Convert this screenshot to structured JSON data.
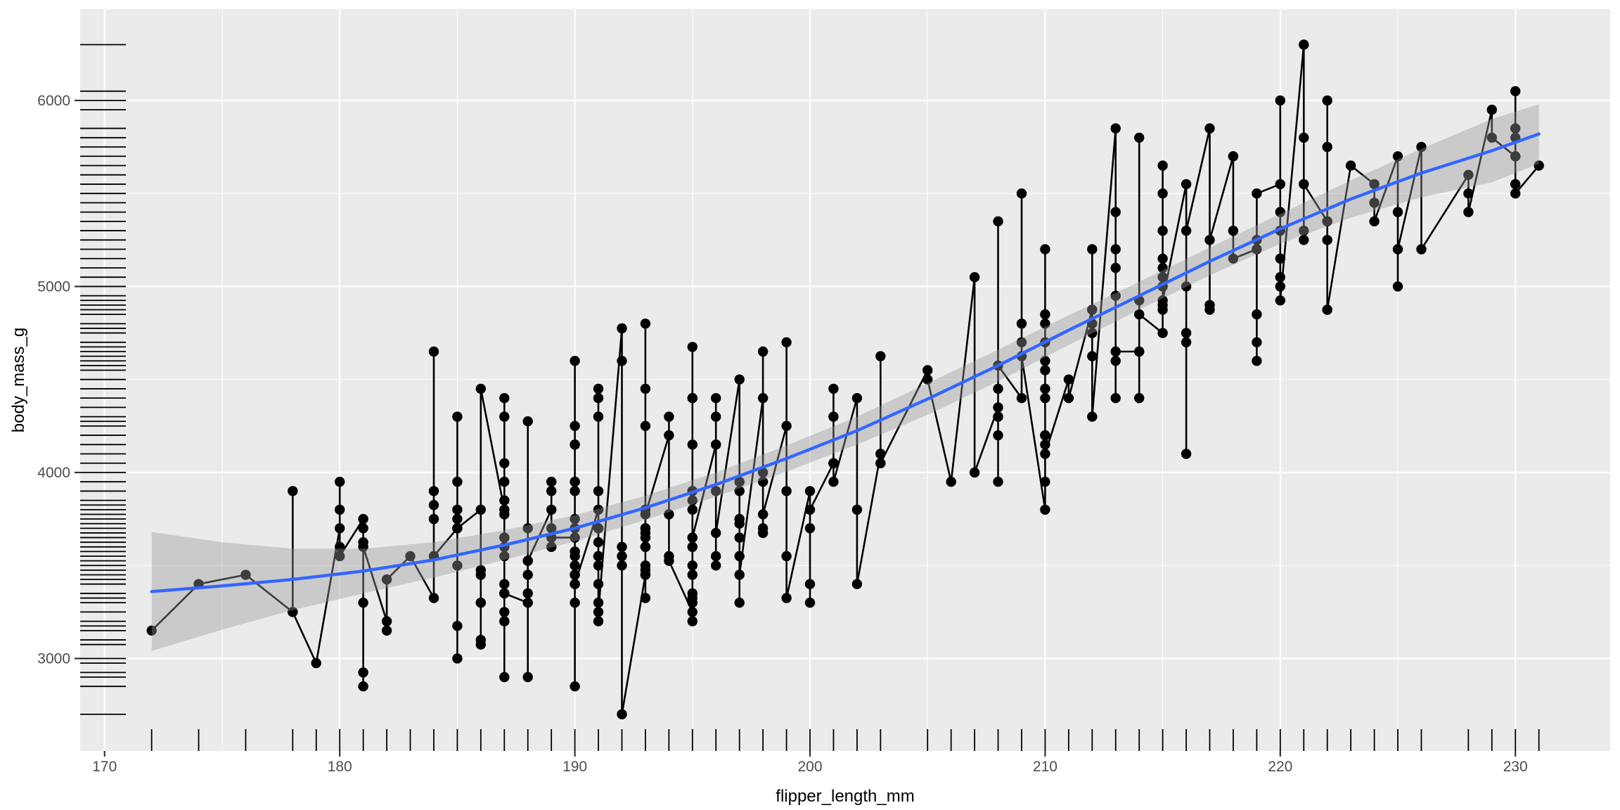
{
  "chart_data": {
    "type": "scatter",
    "title": "",
    "xlabel": "flipper_length_mm",
    "ylabel": "body_mass_g",
    "legend": "none",
    "grid": true,
    "x_ticks": [
      170,
      180,
      190,
      200,
      210,
      220,
      230
    ],
    "y_ticks": [
      3000,
      4000,
      5000,
      6000
    ],
    "x_minor_ticks": [
      175,
      185,
      195,
      205,
      215,
      225
    ],
    "y_minor_ticks": [
      3500,
      4500,
      5500
    ],
    "x_range": [
      168.96,
      234.03
    ],
    "y_range": [
      2503,
      6491
    ],
    "layers": [
      "line",
      "point",
      "smooth-loess",
      "rug"
    ],
    "colors": {
      "panel_bg": "#EBEBEB",
      "grid": "#FFFFFF",
      "point": "#000000",
      "line": "#000000",
      "smooth": "#3366FF",
      "ribbon": "#999999",
      "ribbon_alpha": 0.4,
      "tick_label": "#4D4D4D",
      "tick_mark": "#333333",
      "axis_title": "#000000"
    },
    "points": [
      [
        181,
        3750
      ],
      [
        186,
        3800
      ],
      [
        195,
        3250
      ],
      [
        193,
        3450
      ],
      [
        190,
        3650
      ],
      [
        181,
        3625
      ],
      [
        195,
        4675
      ],
      [
        193,
        3475
      ],
      [
        190,
        4250
      ],
      [
        186,
        3300
      ],
      [
        180,
        3700
      ],
      [
        182,
        3200
      ],
      [
        191,
        3800
      ],
      [
        198,
        4400
      ],
      [
        185,
        3700
      ],
      [
        195,
        3450
      ],
      [
        197,
        4500
      ],
      [
        184,
        3325
      ],
      [
        194,
        4200
      ],
      [
        174,
        3400
      ],
      [
        180,
        3600
      ],
      [
        189,
        3800
      ],
      [
        185,
        3950
      ],
      [
        180,
        3800
      ],
      [
        187,
        3800
      ],
      [
        183,
        3550
      ],
      [
        187,
        3200
      ],
      [
        172,
        3150
      ],
      [
        180,
        3950
      ],
      [
        178,
        3250
      ],
      [
        178,
        3900
      ],
      [
        188,
        3300
      ],
      [
        184,
        3900
      ],
      [
        195,
        3325
      ],
      [
        196,
        4150
      ],
      [
        190,
        3950
      ],
      [
        180,
        3550
      ],
      [
        181,
        3300
      ],
      [
        184,
        4650
      ],
      [
        182,
        3150
      ],
      [
        195,
        3900
      ],
      [
        186,
        3100
      ],
      [
        196,
        4400
      ],
      [
        185,
        3000
      ],
      [
        190,
        4600
      ],
      [
        182,
        3425
      ],
      [
        179,
        2975
      ],
      [
        190,
        4150
      ],
      [
        191,
        3500
      ],
      [
        186,
        3450
      ],
      [
        188,
        3525
      ],
      [
        190,
        3950
      ],
      [
        200,
        3900
      ],
      [
        187,
        3650
      ],
      [
        191,
        3625
      ],
      [
        186,
        3475
      ],
      [
        188,
        3450
      ],
      [
        190,
        3750
      ],
      [
        200,
        3700
      ],
      [
        187,
        4400
      ],
      [
        191,
        3700
      ],
      [
        186,
        3075
      ],
      [
        193,
        4250
      ],
      [
        181,
        2925
      ],
      [
        194,
        3550
      ],
      [
        185,
        3750
      ],
      [
        195,
        3900
      ],
      [
        185,
        3175
      ],
      [
        192,
        4775
      ],
      [
        184,
        3825
      ],
      [
        192,
        4600
      ],
      [
        195,
        3200
      ],
      [
        188,
        4275
      ],
      [
        190,
        3900
      ],
      [
        198,
        4650
      ],
      [
        190,
        3550
      ],
      [
        197,
        3650
      ],
      [
        195,
        3650
      ],
      [
        191,
        4400
      ],
      [
        193,
        3600
      ],
      [
        197,
        3900
      ],
      [
        191,
        3550
      ],
      [
        196,
        4150
      ],
      [
        188,
        3700
      ],
      [
        199,
        4250
      ],
      [
        189,
        3700
      ],
      [
        189,
        3900
      ],
      [
        187,
        3550
      ],
      [
        198,
        4000
      ],
      [
        176,
        3450
      ],
      [
        202,
        4400
      ],
      [
        186,
        3300
      ],
      [
        199,
        4700
      ],
      [
        191,
        3200
      ],
      [
        195,
        3350
      ],
      [
        191,
        3550
      ],
      [
        210,
        3800
      ],
      [
        190,
        3500
      ],
      [
        197,
        3950
      ],
      [
        193,
        3600
      ],
      [
        199,
        3550
      ],
      [
        187,
        4300
      ],
      [
        190,
        3400
      ],
      [
        191,
        4450
      ],
      [
        200,
        3300
      ],
      [
        185,
        4300
      ],
      [
        193,
        3700
      ],
      [
        193,
        3450
      ],
      [
        187,
        4050
      ],
      [
        188,
        2900
      ],
      [
        190,
        3700
      ],
      [
        192,
        3550
      ],
      [
        185,
        3800
      ],
      [
        190,
        2850
      ],
      [
        184,
        3750
      ],
      [
        195,
        4400
      ],
      [
        193,
        3700
      ],
      [
        187,
        3775
      ],
      [
        201,
        4050
      ],
      [
        190,
        3300
      ],
      [
        185,
        3500
      ],
      [
        193,
        3675
      ],
      [
        193,
        3325
      ],
      [
        187,
        3600
      ],
      [
        188,
        3350
      ],
      [
        190,
        4150
      ],
      [
        192,
        3600
      ],
      [
        185,
        3700
      ],
      [
        190,
        3450
      ],
      [
        184,
        3550
      ],
      [
        195,
        3800
      ],
      [
        193,
        3500
      ],
      [
        187,
        3950
      ],
      [
        189,
        3600
      ],
      [
        197,
        3550
      ],
      [
        191,
        4300
      ],
      [
        203,
        4100
      ],
      [
        195,
        3600
      ],
      [
        191,
        3900
      ],
      [
        187,
        3850
      ],
      [
        193,
        4800
      ],
      [
        195,
        3500
      ],
      [
        189,
        3950
      ],
      [
        189,
        3600
      ],
      [
        196,
        4300
      ],
      [
        187,
        3400
      ],
      [
        193,
        4450
      ],
      [
        191,
        3300
      ],
      [
        194,
        4300
      ],
      [
        181,
        2850
      ],
      [
        186,
        4450
      ],
      [
        211,
        4500
      ],
      [
        230,
        5700
      ],
      [
        210,
        4450
      ],
      [
        218,
        5700
      ],
      [
        215,
        4750
      ],
      [
        210,
        5200
      ],
      [
        211,
        4400
      ],
      [
        219,
        5200
      ],
      [
        209,
        4400
      ],
      [
        215,
        5150
      ],
      [
        214,
        4650
      ],
      [
        216,
        5550
      ],
      [
        214,
        4650
      ],
      [
        213,
        5850
      ],
      [
        210,
        4200
      ],
      [
        217,
        5850
      ],
      [
        210,
        4150
      ],
      [
        221,
        6300
      ],
      [
        209,
        4800
      ],
      [
        222,
        5350
      ],
      [
        218,
        5700
      ],
      [
        215,
        5000
      ],
      [
        213,
        4400
      ],
      [
        215,
        5050
      ],
      [
        215,
        5000
      ],
      [
        215,
        5100
      ],
      [
        216,
        4100
      ],
      [
        215,
        5650
      ],
      [
        210,
        4600
      ],
      [
        220,
        5550
      ],
      [
        222,
        5250
      ],
      [
        209,
        4700
      ],
      [
        207,
        5050
      ],
      [
        230,
        6050
      ],
      [
        220,
        5150
      ],
      [
        220,
        5400
      ],
      [
        213,
        4950
      ],
      [
        219,
        5250
      ],
      [
        208,
        4350
      ],
      [
        208,
        5350
      ],
      [
        208,
        3950
      ],
      [
        225,
        5700
      ],
      [
        208,
        4300
      ],
      [
        216,
        4750
      ],
      [
        222,
        5350
      ],
      [
        217,
        4900
      ],
      [
        210,
        4200
      ],
      [
        225,
        5400
      ],
      [
        213,
        5100
      ],
      [
        215,
        5300
      ],
      [
        210,
        4850
      ],
      [
        220,
        5300
      ],
      [
        210,
        4400
      ],
      [
        225,
        5000
      ],
      [
        217,
        4900
      ],
      [
        220,
        5050
      ],
      [
        208,
        4300
      ],
      [
        220,
        5000
      ],
      [
        208,
        4450
      ],
      [
        224,
        5550
      ],
      [
        208,
        4200
      ],
      [
        221,
        5300
      ],
      [
        214,
        4400
      ],
      [
        231,
        5650
      ],
      [
        219,
        4700
      ],
      [
        230,
        5700
      ],
      [
        214,
        5800
      ],
      [
        216,
        4700
      ],
      [
        221,
        5800
      ],
      [
        213,
        4600
      ],
      [
        215,
        4900
      ],
      [
        222,
        4875
      ],
      [
        212,
        4875
      ],
      [
        213,
        5200
      ],
      [
        224,
        5450
      ],
      [
        212,
        4625
      ],
      [
        221,
        5250
      ],
      [
        219,
        4600
      ],
      [
        215,
        5500
      ],
      [
        215,
        4875
      ],
      [
        230,
        5850
      ],
      [
        230,
        5800
      ],
      [
        230,
        5550
      ],
      [
        230,
        5500
      ],
      [
        229,
        5950
      ],
      [
        229,
        5800
      ],
      [
        228,
        5600
      ],
      [
        228,
        5500
      ],
      [
        228,
        5400
      ],
      [
        222,
        6000
      ],
      [
        222,
        5750
      ],
      [
        226,
        5750
      ],
      [
        225,
        5200
      ],
      [
        223,
        5650
      ],
      [
        221,
        5550
      ],
      [
        212,
        5200
      ],
      [
        213,
        5400
      ],
      [
        214,
        4925
      ],
      [
        218,
        5300
      ],
      [
        212,
        4875
      ],
      [
        218,
        5150
      ],
      [
        212,
        4750
      ],
      [
        214,
        4850
      ],
      [
        226,
        5200
      ],
      [
        215,
        4925
      ],
      [
        222,
        4875
      ],
      [
        220,
        6000
      ],
      [
        219,
        4850
      ],
      [
        217,
        4875
      ],
      [
        210,
        4700
      ],
      [
        219,
        5500
      ],
      [
        208,
        4575
      ],
      [
        209,
        5500
      ],
      [
        216,
        5000
      ],
      [
        213,
        4650
      ],
      [
        203,
        4625
      ],
      [
        210,
        4550
      ],
      [
        224,
        5350
      ],
      [
        217,
        5250
      ],
      [
        216,
        5300
      ],
      [
        212,
        4800
      ],
      [
        220,
        4925
      ],
      [
        209,
        4625
      ],
      [
        192,
        3500
      ],
      [
        196,
        3900
      ],
      [
        193,
        3650
      ],
      [
        188,
        3525
      ],
      [
        197,
        3725
      ],
      [
        198,
        3950
      ],
      [
        178,
        3250
      ],
      [
        197,
        3750
      ],
      [
        195,
        4150
      ],
      [
        198,
        3700
      ],
      [
        193,
        3800
      ],
      [
        194,
        3775
      ],
      [
        185,
        3700
      ],
      [
        201,
        4050
      ],
      [
        190,
        3575
      ],
      [
        201,
        4050
      ],
      [
        197,
        3300
      ],
      [
        181,
        3700
      ],
      [
        190,
        3450
      ],
      [
        195,
        4400
      ],
      [
        181,
        3600
      ],
      [
        191,
        3400
      ],
      [
        187,
        2900
      ],
      [
        193,
        3800
      ],
      [
        195,
        3300
      ],
      [
        197,
        3950
      ],
      [
        200,
        3400
      ],
      [
        200,
        3800
      ],
      [
        191,
        3700
      ],
      [
        205,
        4550
      ],
      [
        187,
        3200
      ],
      [
        201,
        4300
      ],
      [
        187,
        3350
      ],
      [
        203,
        4100
      ],
      [
        195,
        3600
      ],
      [
        199,
        3900
      ],
      [
        195,
        3850
      ],
      [
        210,
        4800
      ],
      [
        192,
        2700
      ],
      [
        205,
        4500
      ],
      [
        210,
        3950
      ],
      [
        187,
        3650
      ],
      [
        196,
        3550
      ],
      [
        196,
        3500
      ],
      [
        196,
        3675
      ],
      [
        201,
        4450
      ],
      [
        190,
        3400
      ],
      [
        212,
        4300
      ],
      [
        187,
        3250
      ],
      [
        198,
        3675
      ],
      [
        199,
        3325
      ],
      [
        201,
        3950
      ],
      [
        193,
        3600
      ],
      [
        203,
        4050
      ],
      [
        187,
        3350
      ],
      [
        197,
        3450
      ],
      [
        191,
        3250
      ],
      [
        203,
        4050
      ],
      [
        202,
        3800
      ],
      [
        194,
        3525
      ],
      [
        206,
        3950
      ],
      [
        189,
        3650
      ],
      [
        195,
        3650
      ],
      [
        207,
        4000
      ],
      [
        202,
        3400
      ],
      [
        193,
        3775
      ],
      [
        210,
        4100
      ],
      [
        198,
        3775
      ]
    ],
    "smooth": {
      "x": [
        172,
        175,
        178,
        181,
        184,
        187,
        190,
        193,
        196,
        199,
        202,
        205,
        208,
        211,
        214,
        217,
        220,
        223,
        226,
        229,
        231
      ],
      "y": [
        3360,
        3390,
        3425,
        3470,
        3530,
        3610,
        3700,
        3810,
        3935,
        4075,
        4225,
        4395,
        4575,
        4765,
        4950,
        5135,
        5310,
        5470,
        5610,
        5730,
        5820
      ],
      "ymin": [
        3040,
        3155,
        3260,
        3350,
        3435,
        3530,
        3630,
        3745,
        3870,
        4005,
        4150,
        4310,
        4490,
        4685,
        4875,
        5060,
        5230,
        5370,
        5480,
        5560,
        5660
      ],
      "ymax": [
        3680,
        3625,
        3590,
        3590,
        3625,
        3690,
        3770,
        3875,
        4000,
        4145,
        4300,
        4480,
        4660,
        4845,
        5025,
        5210,
        5390,
        5570,
        5740,
        5900,
        5980
      ]
    }
  }
}
